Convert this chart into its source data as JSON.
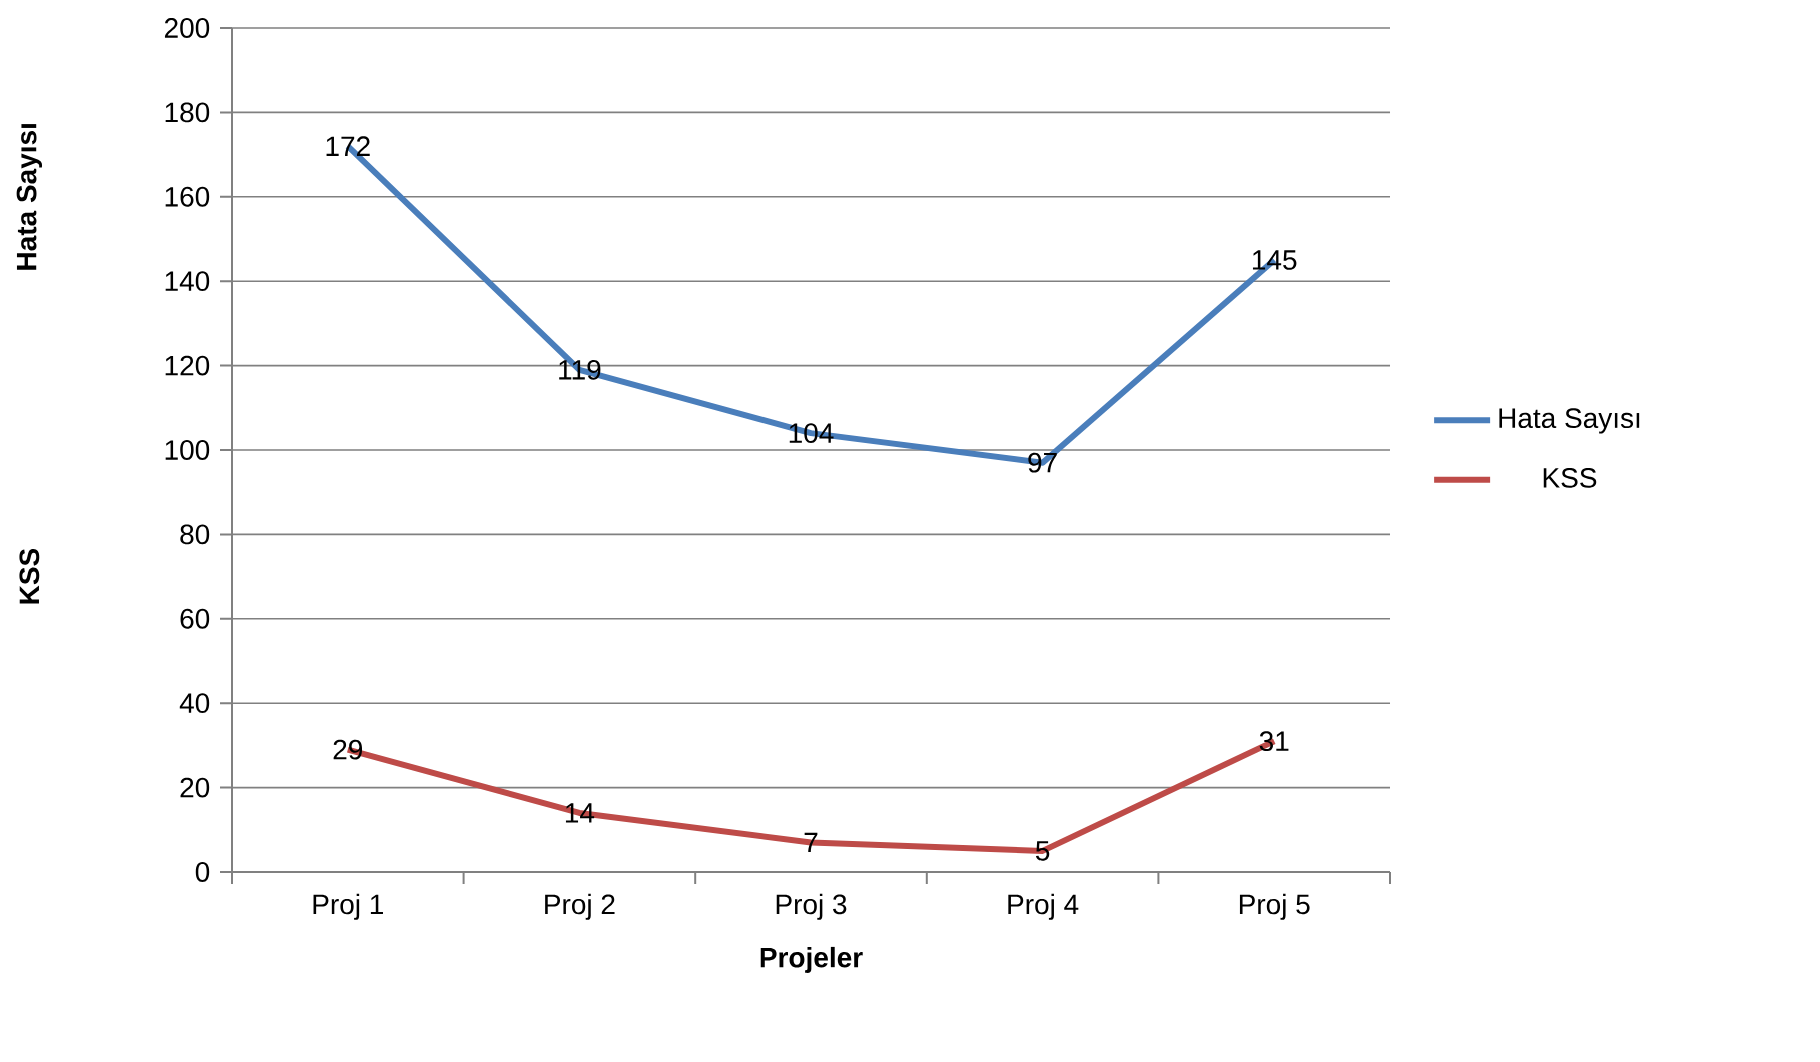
{
  "chart_data": {
    "type": "line",
    "xlabel": "Projeler",
    "ylabel": "Hata Sayısı",
    "annotations": [
      "KSS"
    ],
    "categories": [
      "Proj 1",
      "Proj 2",
      "Proj 3",
      "Proj 4",
      "Proj 5"
    ],
    "series": [
      {
        "name": "Hata Sayısı",
        "color": "#4a7ebb",
        "values": [
          172,
          119,
          104,
          97,
          145
        ]
      },
      {
        "name": "KSS",
        "color": "#be4b48",
        "values": [
          29,
          14,
          7,
          5,
          31
        ]
      }
    ],
    "ylim": [
      0,
      200
    ],
    "yticks": [
      0,
      20,
      40,
      60,
      80,
      100,
      120,
      140,
      160,
      180,
      200
    ],
    "grid": "y",
    "legend": "right",
    "data_labels": true,
    "marker": "none",
    "line_style": "solid"
  }
}
